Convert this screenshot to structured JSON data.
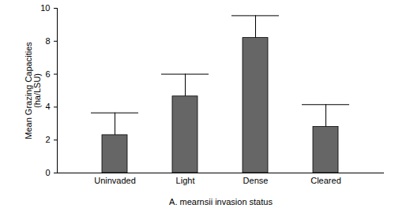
{
  "chart_data": {
    "type": "bar",
    "categories": [
      "Uninvaded",
      "Light",
      "Dense",
      "Cleared"
    ],
    "values": [
      2.3,
      4.65,
      8.2,
      2.8
    ],
    "errors": [
      1.35,
      1.35,
      1.35,
      1.35
    ],
    "color": "#666666",
    "xlabel": "A. mearnsii invasion status",
    "ylabel": "Mean Grazing Capacities\n(ha/LSU)",
    "ylim": [
      0,
      10
    ],
    "yticks": [
      0,
      2,
      4,
      6,
      8,
      10
    ],
    "grid": false
  }
}
